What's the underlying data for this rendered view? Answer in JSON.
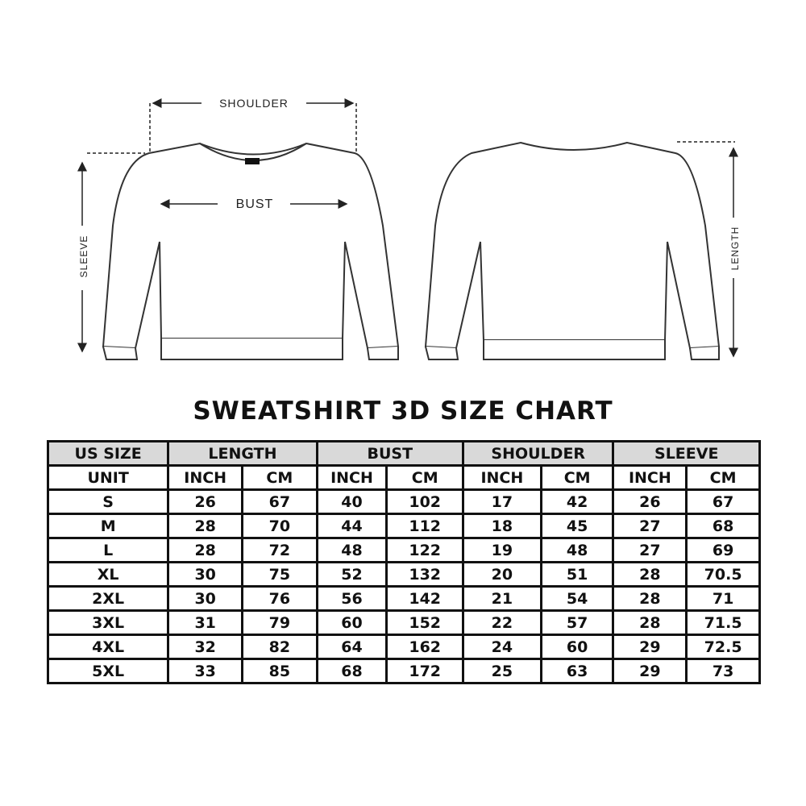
{
  "diagram": {
    "labels": {
      "shoulder": "SHOULDER",
      "bust": "BUST",
      "sleeve": "SLEEVE",
      "length": "LENGTH"
    }
  },
  "title": "SWEATSHIRT 3D SIZE CHART",
  "table": {
    "groups": [
      "US SIZE",
      "LENGTH",
      "BUST",
      "SHOULDER",
      "SLEEVE"
    ],
    "units": [
      "UNIT",
      "INCH",
      "CM",
      "INCH",
      "CM",
      "INCH",
      "CM",
      "INCH",
      "CM"
    ],
    "rows": [
      [
        "S",
        "26",
        "67",
        "40",
        "102",
        "17",
        "42",
        "26",
        "67"
      ],
      [
        "M",
        "28",
        "70",
        "44",
        "112",
        "18",
        "45",
        "27",
        "68"
      ],
      [
        "L",
        "28",
        "72",
        "48",
        "122",
        "19",
        "48",
        "27",
        "69"
      ],
      [
        "XL",
        "30",
        "75",
        "52",
        "132",
        "20",
        "51",
        "28",
        "70.5"
      ],
      [
        "2XL",
        "30",
        "76",
        "56",
        "142",
        "21",
        "54",
        "28",
        "71"
      ],
      [
        "3XL",
        "31",
        "79",
        "60",
        "152",
        "22",
        "57",
        "28",
        "71.5"
      ],
      [
        "4XL",
        "32",
        "82",
        "64",
        "162",
        "24",
        "60",
        "29",
        "72.5"
      ],
      [
        "5XL",
        "33",
        "85",
        "68",
        "172",
        "25",
        "63",
        "29",
        "73"
      ]
    ]
  }
}
